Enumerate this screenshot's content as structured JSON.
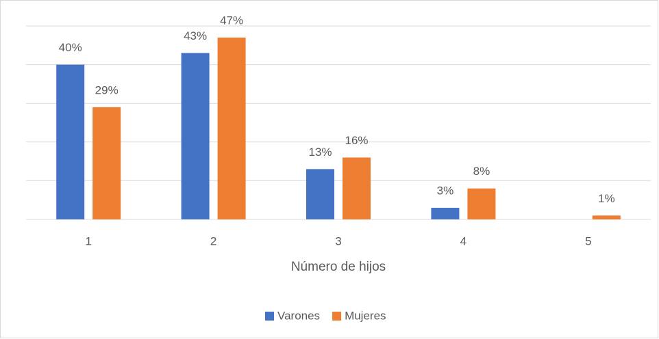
{
  "chart_data": {
    "type": "bar",
    "x_label": "Número de hijos",
    "categories": [
      "1",
      "2",
      "3",
      "4",
      "5"
    ],
    "series": [
      {
        "name": "Varones",
        "color": "#4472c4",
        "values": [
          40,
          43,
          13,
          3,
          null
        ],
        "value_labels": [
          "40%",
          "43%",
          "13%",
          "3%",
          null
        ]
      },
      {
        "name": "Mujeres",
        "color": "#ed7d31",
        "values": [
          29,
          47,
          16,
          8,
          1
        ],
        "value_labels": [
          "29%",
          "47%",
          "16%",
          "8%",
          "1%"
        ]
      }
    ],
    "ylim": [
      0,
      50
    ],
    "yticks": [
      0,
      10,
      20,
      30,
      40,
      50
    ],
    "grid": true,
    "legend": "bottom"
  }
}
